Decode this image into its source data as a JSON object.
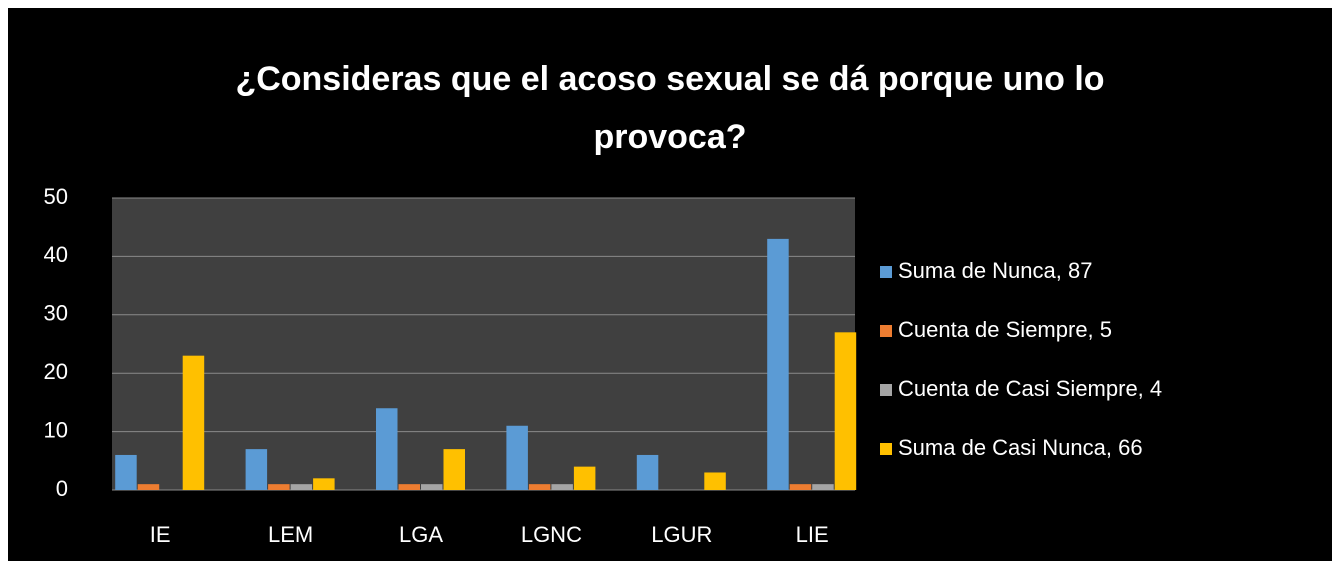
{
  "chart_data": {
    "type": "bar",
    "title": "¿Consideras que el acoso sexual se dá porque uno lo provoca?",
    "categories": [
      "IE",
      "LEM",
      "LGA",
      "LGNC",
      "LGUR",
      "LIE"
    ],
    "series": [
      {
        "name": "Suma de Nunca, 87",
        "color": "#5b9bd5",
        "values": [
          6,
          7,
          14,
          11,
          6,
          43
        ]
      },
      {
        "name": "Cuenta de Siempre, 5",
        "color": "#ed7d31",
        "values": [
          1,
          1,
          1,
          1,
          0,
          1
        ]
      },
      {
        "name": "Cuenta de Casi Siempre, 4",
        "color": "#a5a5a5",
        "values": [
          0,
          1,
          1,
          1,
          0,
          1
        ]
      },
      {
        "name": "Suma de Casi Nunca, 66",
        "color": "#ffc000",
        "values": [
          23,
          2,
          7,
          4,
          3,
          27
        ]
      }
    ],
    "ylim": [
      0,
      50
    ],
    "yticks": [
      0,
      10,
      20,
      30,
      40,
      50
    ],
    "grid": true,
    "legend": "right"
  }
}
